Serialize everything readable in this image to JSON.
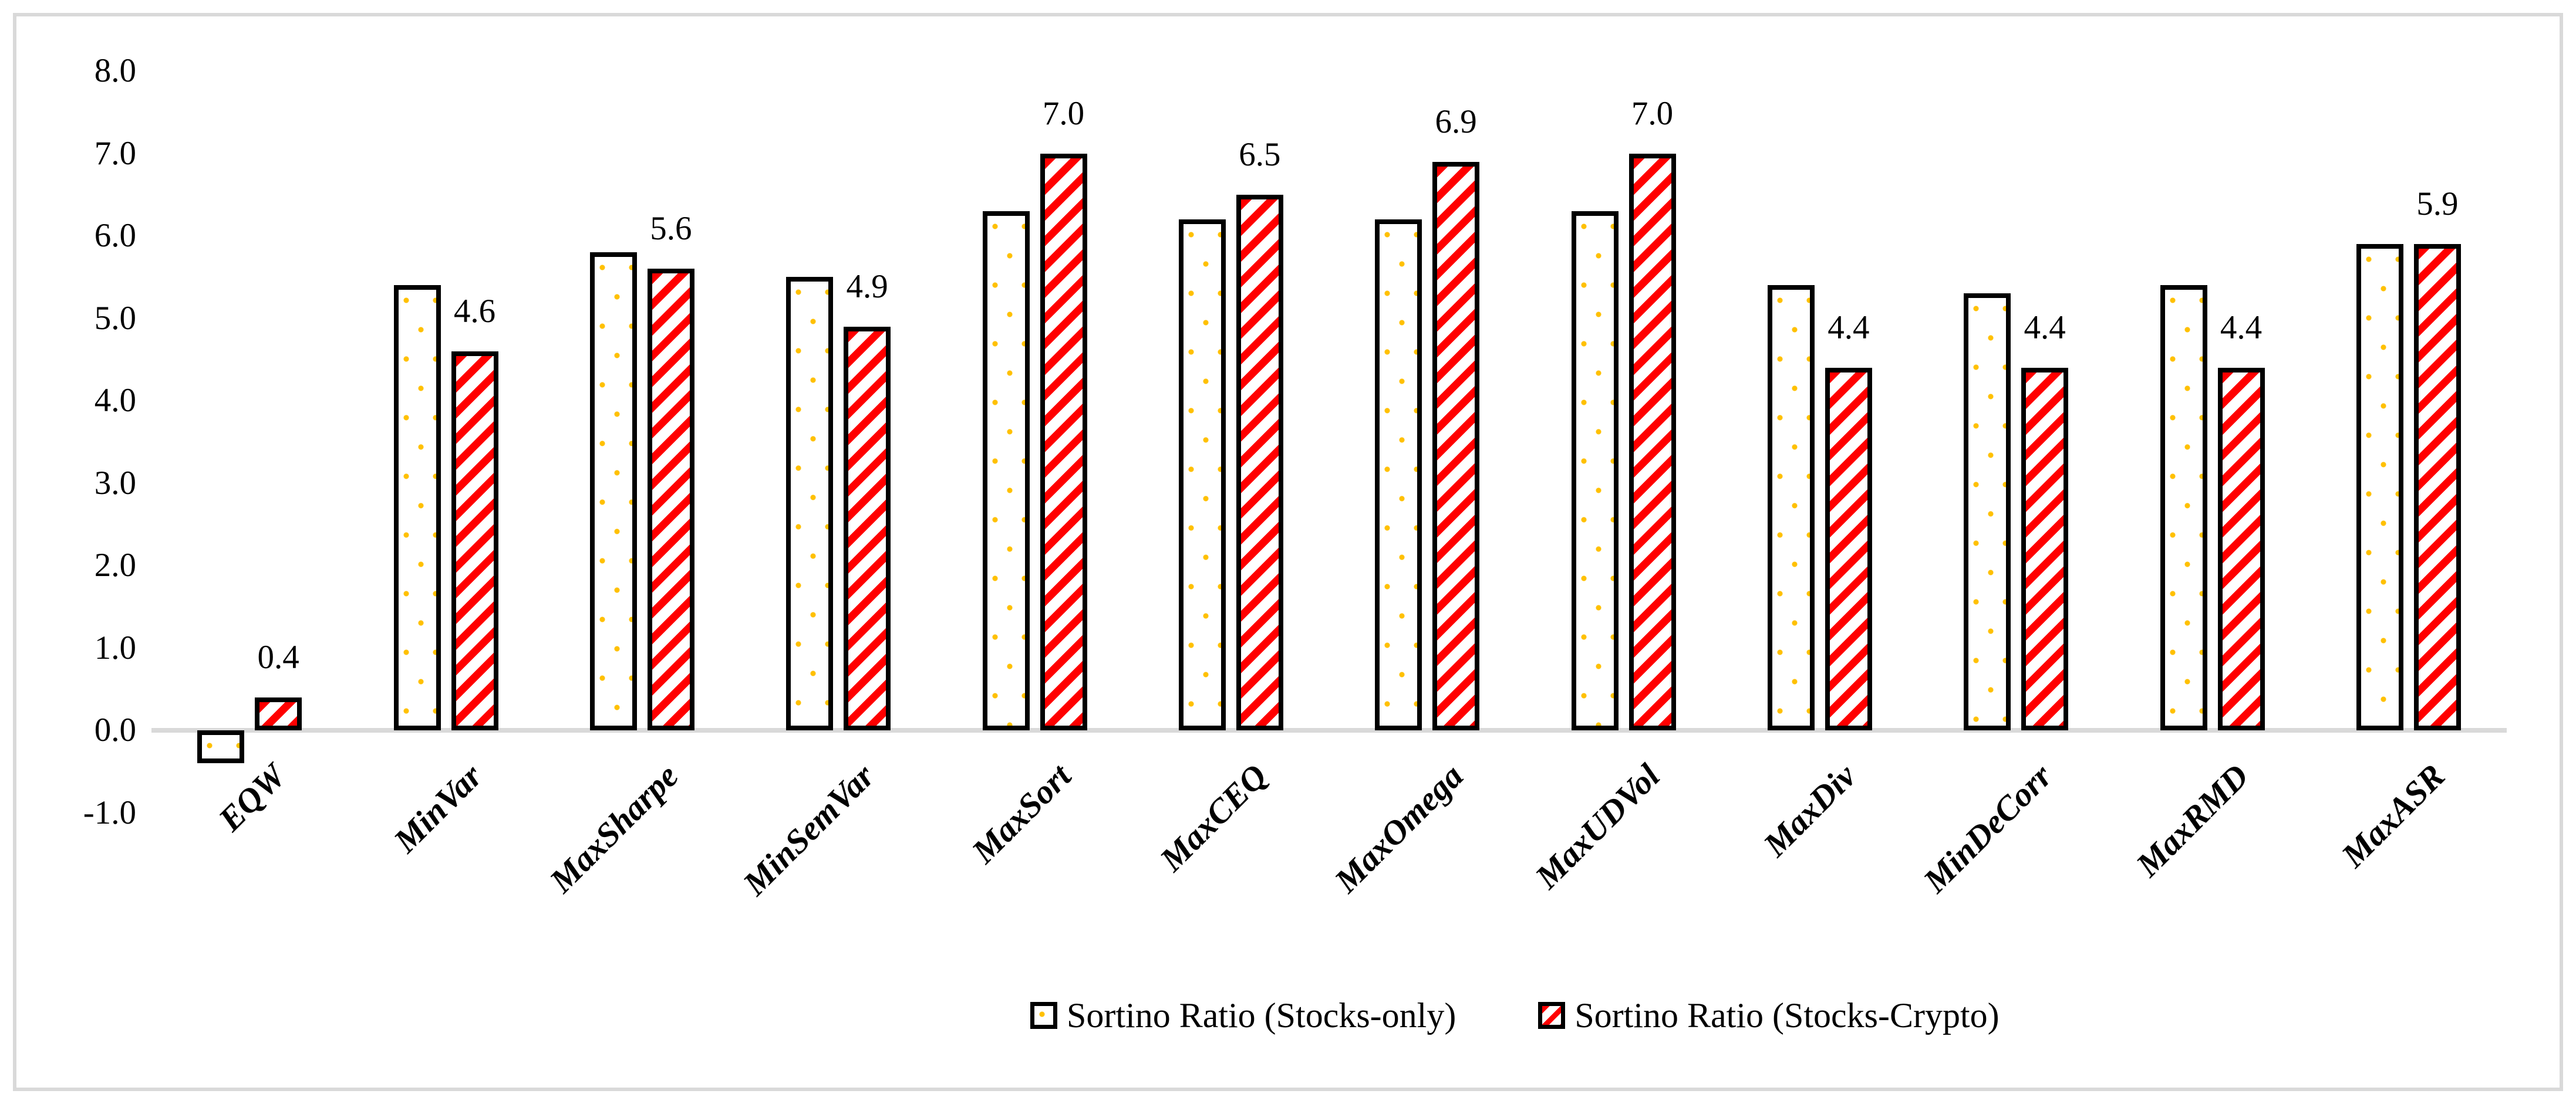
{
  "chart_data": {
    "type": "bar",
    "title": "",
    "categories": [
      "EQW",
      "MinVar",
      "MaxSharpe",
      "MinSemVar",
      "MaxSort",
      "MaxCEQ",
      "MaxOmega",
      "MaxUDVol",
      "MaxDiv",
      "MinDeCorr",
      "MaxRMD",
      "MaxASR"
    ],
    "series": [
      {
        "name": "Sortino Ratio (Stocks-only)",
        "pattern": "orange-dots",
        "values": [
          -0.4,
          5.4,
          5.8,
          5.5,
          6.3,
          6.2,
          6.2,
          6.3,
          5.4,
          5.3,
          5.4,
          5.9
        ]
      },
      {
        "name": "Sortino Ratio (Stocks-Crypto)",
        "pattern": "red-stripes",
        "values": [
          0.4,
          4.6,
          5.6,
          4.9,
          7.0,
          6.5,
          6.9,
          7.0,
          4.4,
          4.4,
          4.4,
          5.9
        ],
        "data_labels": [
          "0.4",
          "4.6",
          "5.6",
          "4.9",
          "7.0",
          "6.5",
          "6.9",
          "7.0",
          "4.4",
          "4.4",
          "4.4",
          "5.9"
        ]
      }
    ],
    "xlabel": "",
    "ylabel": "",
    "ylim": [
      -1.0,
      8.0
    ],
    "ytick_step": 1.0,
    "yticks": [
      "8.0",
      "7.0",
      "6.0",
      "5.0",
      "4.0",
      "3.0",
      "2.0",
      "1.0",
      "0.0",
      "-1.0"
    ],
    "grid": false,
    "legend_position": "bottom-center",
    "data_labels_on": "Sortino Ratio (Stocks-Crypto)",
    "colors": {
      "dot": "#FFC000",
      "stripe": "#FF0000",
      "bar_border": "#000000",
      "axis_line": "#D9D9D9",
      "frame_border": "#D9D9D9",
      "background": "#FFFFFF",
      "text": "#000000"
    }
  }
}
